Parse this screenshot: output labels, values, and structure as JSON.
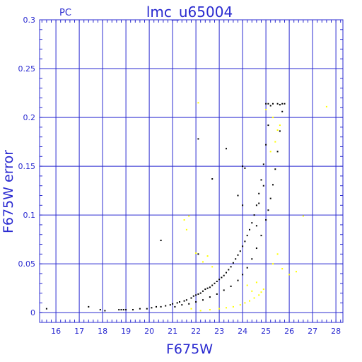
{
  "chart_data": {
    "type": "scatter",
    "title": "lmc_u65004",
    "corner_label": "PC",
    "xlabel": "F675W",
    "ylabel": "F675W error",
    "xlim": [
      15.3,
      28.3
    ],
    "ylim": [
      -0.01,
      0.3
    ],
    "x_ticks": [
      16,
      17,
      18,
      19,
      20,
      21,
      22,
      23,
      24,
      25,
      26,
      27,
      28
    ],
    "y_ticks": [
      0,
      0.05,
      0.1,
      0.15,
      0.2,
      0.25,
      0.3
    ],
    "y_tick_labels": [
      "0",
      "0.05",
      "0.1",
      "0.15",
      "0.2",
      "0.25",
      "0.3"
    ],
    "grid": true,
    "grid_color": "#2a2ad0",
    "series": [
      {
        "color": "#000000",
        "points": [
          [
            15.6,
            0.004
          ],
          [
            17.4,
            0.006
          ],
          [
            17.9,
            0.003
          ],
          [
            18.1,
            0.002
          ],
          [
            18.7,
            0.003
          ],
          [
            18.8,
            0.003
          ],
          [
            18.9,
            0.003
          ],
          [
            19.0,
            0.003
          ],
          [
            19.3,
            0.003
          ],
          [
            19.6,
            0.004
          ],
          [
            19.9,
            0.004
          ],
          [
            20.1,
            0.005
          ],
          [
            20.3,
            0.006
          ],
          [
            20.5,
            0.006
          ],
          [
            20.7,
            0.007
          ],
          [
            20.9,
            0.008
          ],
          [
            21.0,
            0.009
          ],
          [
            21.2,
            0.01
          ],
          [
            21.3,
            0.011
          ],
          [
            21.5,
            0.012
          ],
          [
            21.6,
            0.013
          ],
          [
            21.8,
            0.015
          ],
          [
            21.9,
            0.017
          ],
          [
            22.0,
            0.018
          ],
          [
            22.1,
            0.019
          ],
          [
            22.2,
            0.02
          ],
          [
            22.3,
            0.022
          ],
          [
            22.4,
            0.024
          ],
          [
            22.5,
            0.025
          ],
          [
            22.6,
            0.026
          ],
          [
            22.7,
            0.028
          ],
          [
            22.8,
            0.03
          ],
          [
            22.9,
            0.032
          ],
          [
            23.0,
            0.034
          ],
          [
            23.1,
            0.036
          ],
          [
            23.2,
            0.038
          ],
          [
            23.3,
            0.041
          ],
          [
            23.4,
            0.044
          ],
          [
            23.5,
            0.047
          ],
          [
            23.6,
            0.051
          ],
          [
            23.7,
            0.055
          ],
          [
            23.8,
            0.059
          ],
          [
            23.9,
            0.063
          ],
          [
            24.0,
            0.068
          ],
          [
            24.1,
            0.073
          ],
          [
            24.2,
            0.079
          ],
          [
            24.3,
            0.085
          ],
          [
            24.4,
            0.092
          ],
          [
            24.5,
            0.1
          ],
          [
            24.6,
            0.11
          ],
          [
            24.7,
            0.122
          ],
          [
            24.8,
            0.136
          ],
          [
            24.9,
            0.152
          ],
          [
            25.0,
            0.172
          ],
          [
            25.1,
            0.192
          ],
          [
            25.2,
            0.212
          ],
          [
            21.1,
            0.006
          ],
          [
            21.4,
            0.008
          ],
          [
            21.7,
            0.009
          ],
          [
            22.0,
            0.011
          ],
          [
            22.3,
            0.013
          ],
          [
            22.6,
            0.016
          ],
          [
            22.9,
            0.019
          ],
          [
            23.2,
            0.023
          ],
          [
            23.5,
            0.027
          ],
          [
            23.8,
            0.033
          ],
          [
            24.0,
            0.039
          ],
          [
            24.2,
            0.046
          ],
          [
            24.4,
            0.055
          ],
          [
            24.6,
            0.066
          ],
          [
            24.8,
            0.079
          ],
          [
            25.0,
            0.095
          ],
          [
            25.1,
            0.105
          ],
          [
            25.2,
            0.117
          ],
          [
            25.3,
            0.131
          ],
          [
            25.4,
            0.147
          ],
          [
            25.5,
            0.165
          ],
          [
            25.6,
            0.186
          ],
          [
            25.7,
            0.206
          ],
          [
            25.0,
            0.214
          ],
          [
            25.1,
            0.214
          ],
          [
            25.3,
            0.214
          ],
          [
            25.5,
            0.214
          ],
          [
            25.6,
            0.213
          ],
          [
            25.7,
            0.214
          ],
          [
            25.8,
            0.214
          ],
          [
            22.1,
            0.178
          ],
          [
            22.7,
            0.137
          ],
          [
            23.3,
            0.168
          ],
          [
            24.0,
            0.15
          ],
          [
            24.1,
            0.148
          ],
          [
            23.8,
            0.12
          ],
          [
            24.0,
            0.11
          ],
          [
            20.5,
            0.074
          ],
          [
            22.1,
            0.06
          ],
          [
            24.7,
            0.112
          ],
          [
            24.6,
            0.089
          ],
          [
            24.9,
            0.13
          ]
        ]
      },
      {
        "color": "#ffff00",
        "points": [
          [
            21.5,
            0.095
          ],
          [
            21.6,
            0.085
          ],
          [
            21.7,
            0.099
          ],
          [
            22.1,
            0.215
          ],
          [
            22.0,
            0.061
          ],
          [
            22.3,
            0.052
          ],
          [
            22.5,
            0.058
          ],
          [
            22.7,
            0.047
          ],
          [
            21.8,
            0.004
          ],
          [
            22.2,
            0.002
          ],
          [
            22.6,
            0.003
          ],
          [
            23.0,
            0.004
          ],
          [
            23.3,
            0.005
          ],
          [
            23.6,
            0.006
          ],
          [
            23.9,
            0.008
          ],
          [
            24.1,
            0.01
          ],
          [
            24.3,
            0.012
          ],
          [
            24.5,
            0.015
          ],
          [
            24.7,
            0.018
          ],
          [
            24.8,
            0.021
          ],
          [
            24.9,
            0.024
          ],
          [
            24.2,
            0.028
          ],
          [
            24.6,
            0.031
          ],
          [
            24.4,
            0.022
          ],
          [
            25.3,
            0.05
          ],
          [
            25.7,
            0.045
          ],
          [
            26.0,
            0.039
          ],
          [
            26.3,
            0.042
          ],
          [
            25.5,
            0.06
          ],
          [
            26.6,
            0.099
          ],
          [
            27.6,
            0.211
          ],
          [
            25.0,
            0.208
          ],
          [
            25.3,
            0.2
          ],
          [
            25.5,
            0.187
          ],
          [
            25.6,
            0.192
          ],
          [
            25.4,
            0.175
          ],
          [
            25.2,
            0.165
          ]
        ]
      }
    ]
  }
}
